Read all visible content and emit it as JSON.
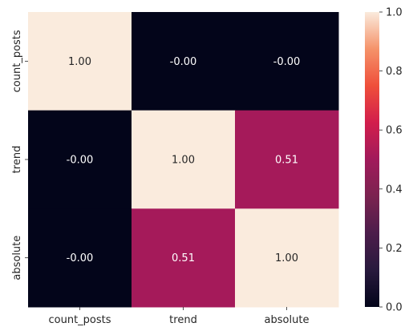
{
  "chart_data": {
    "type": "heatmap",
    "title": "",
    "xlabel": "",
    "ylabel": "",
    "x_categories": [
      "count_posts",
      "trend",
      "absolute"
    ],
    "y_categories": [
      "count_posts",
      "trend",
      "absolute"
    ],
    "values": [
      [
        1.0,
        -0.0,
        -0.0
      ],
      [
        -0.0,
        1.0,
        0.51
      ],
      [
        -0.0,
        0.51,
        1.0
      ]
    ],
    "cell_labels": [
      [
        "1.00",
        "-0.00",
        "-0.00"
      ],
      [
        "-0.00",
        "1.00",
        "0.51"
      ],
      [
        "-0.00",
        "0.51",
        "1.00"
      ]
    ],
    "colormap": "rocket",
    "colorbar": {
      "range": [
        0.0,
        1.0
      ],
      "ticks": [
        0.0,
        0.2,
        0.4,
        0.6,
        0.8,
        1.0
      ],
      "tick_labels": [
        "0.0",
        "0.2",
        "0.4",
        "0.6",
        "0.8",
        "1.0"
      ]
    },
    "text_colors": {
      "light": "#ffffff",
      "dark": "#262626"
    }
  }
}
